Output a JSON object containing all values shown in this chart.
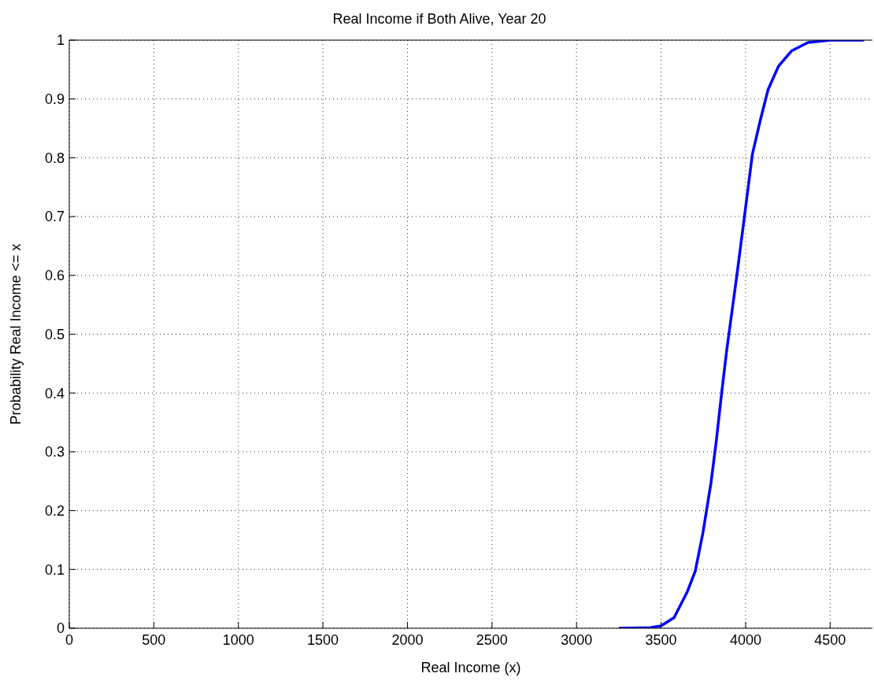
{
  "chart_data": {
    "type": "line",
    "title": "Real Income if Both Alive, Year 20",
    "xlabel": "Real Income (x)",
    "ylabel": "Probability Real Income <= x",
    "series": [
      {
        "color": "#0000ff",
        "x": [
          3250,
          3437,
          3500,
          3577,
          3655,
          3702,
          3748,
          3795,
          3826,
          3857,
          3888,
          3919,
          3950,
          3993,
          4040,
          4087,
          4133,
          4195,
          4273,
          4369,
          4500,
          4700
        ],
        "values": [
          0,
          0.001,
          0.004,
          0.018,
          0.062,
          0.097,
          0.163,
          0.247,
          0.317,
          0.397,
          0.472,
          0.538,
          0.604,
          0.7,
          0.806,
          0.864,
          0.916,
          0.956,
          0.982,
          0.996,
          1,
          1
        ]
      }
    ],
    "xlim": [
      0,
      4750
    ],
    "xticks": [
      0,
      500,
      1000,
      1500,
      2000,
      2500,
      3000,
      3500,
      4000,
      4500
    ],
    "ylim": [
      0,
      1
    ],
    "yticks": [
      0,
      0.1,
      0.2,
      0.3,
      0.4,
      0.5,
      0.6,
      0.7,
      0.8,
      0.9,
      1
    ],
    "grid": true,
    "marker": "none",
    "line_style": "solid"
  }
}
